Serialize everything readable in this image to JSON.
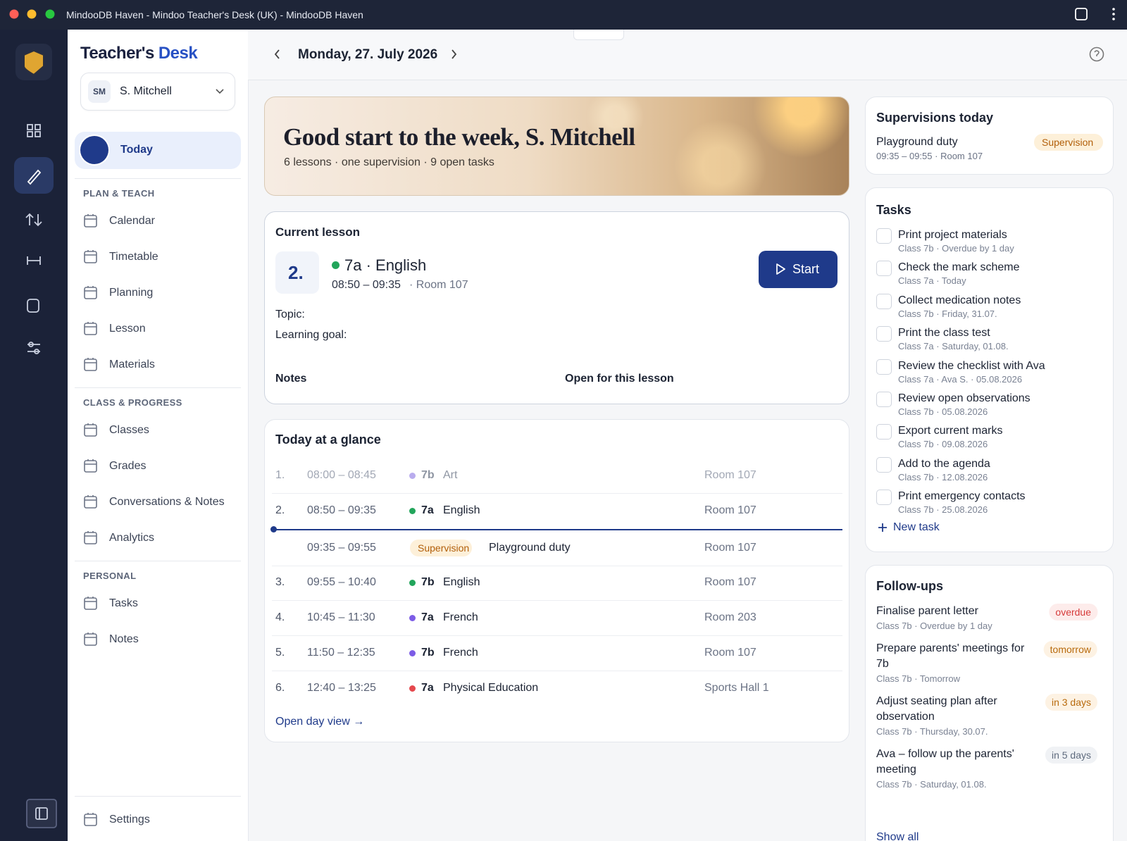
{
  "window": {
    "title": "MindooDB Haven - Mindoo Teacher's Desk (UK) - MindooDB Haven"
  },
  "sidebar": {
    "brand_part1": "Teacher's",
    "brand_part2": "Desk",
    "user": {
      "initials": "SM",
      "name": "S. Mitchell"
    },
    "active": "Today",
    "sections": [
      {
        "heading": "PLAN & TEACH",
        "items": [
          "Calendar",
          "Timetable",
          "Planning",
          "Lesson",
          "Materials"
        ]
      },
      {
        "heading": "CLASS & PROGRESS",
        "items": [
          "Classes",
          "Grades",
          "Conversations & Notes",
          "Analytics"
        ]
      },
      {
        "heading": "PERSONAL",
        "items": [
          "Tasks",
          "Notes"
        ]
      }
    ],
    "settings": "Settings"
  },
  "header": {
    "date": "Monday, 27. July 2026"
  },
  "hero": {
    "title": "Good start to the week, S. Mitchell",
    "subtitle": "6 lessons · one supervision · 9 open tasks"
  },
  "current_lesson": {
    "heading": "Current lesson",
    "number": "2.",
    "title": "7a · English",
    "time": "08:50 – 09:35",
    "room": "· Room 107",
    "start": "Start",
    "topic": "Topic:",
    "goal": "Learning goal:",
    "notes": "Notes",
    "notes_link": "Open for this lesson"
  },
  "glance": {
    "heading": "Today at a glance",
    "rows": [
      {
        "num": "1.",
        "time": "08:00 – 08:45",
        "class": "7b",
        "subject": "Art",
        "room": "Room 107",
        "dot": "#b9acee",
        "muted": true
      },
      {
        "num": "2.",
        "time": "08:50 – 09:35",
        "class": "7a",
        "subject": "English",
        "room": "Room 107",
        "dot": "#22a55b",
        "current": true
      },
      {
        "time": "09:35 – 09:55",
        "badge": "Supervision",
        "subject": "Playground duty",
        "room": "Room 107"
      },
      {
        "num": "3.",
        "time": "09:55 – 10:40",
        "class": "7b",
        "subject": "English",
        "room": "Room 107",
        "dot": "#22a55b"
      },
      {
        "num": "4.",
        "time": "10:45 – 11:30",
        "class": "7a",
        "subject": "French",
        "room": "Room 203",
        "dot": "#7c5ce6"
      },
      {
        "num": "5.",
        "time": "11:50 – 12:35",
        "class": "7b",
        "subject": "French",
        "room": "Room 107",
        "dot": "#7c5ce6"
      },
      {
        "num": "6.",
        "time": "12:40 – 13:25",
        "class": "7a",
        "subject": "Physical Education",
        "room": "Sports Hall 1",
        "dot": "#e5484d"
      }
    ],
    "link": "Open day view →"
  },
  "supervisions": {
    "heading": "Supervisions today",
    "title": "Playground duty",
    "meta": "09:35 – 09:55 · Room 107",
    "badge": "Supervision"
  },
  "tasks": {
    "heading": "Tasks",
    "items": [
      {
        "title": "Print project materials",
        "meta": "Class 7b · Overdue by 1 day"
      },
      {
        "title": "Check the mark scheme",
        "meta": "Class 7a · Today"
      },
      {
        "title": "Collect medication notes",
        "meta": "Class 7b · Friday, 31.07."
      },
      {
        "title": "Print the class test",
        "meta": "Class 7a · Saturday, 01.08."
      },
      {
        "title": "Review the checklist with Ava",
        "meta": "Class 7a · Ava S. · 05.08.2026"
      },
      {
        "title": "Review open observations",
        "meta": "Class 7b · 05.08.2026"
      },
      {
        "title": "Export current marks",
        "meta": "Class 7b · 09.08.2026"
      },
      {
        "title": "Add to the agenda",
        "meta": "Class 7b · 12.08.2026"
      },
      {
        "title": "Print emergency contacts",
        "meta": "Class 7b · 25.08.2026"
      }
    ],
    "new": "New task"
  },
  "followups": {
    "heading": "Follow-ups",
    "items": [
      {
        "title": "Finalise parent letter",
        "meta": "Class 7b · Overdue by 1 day",
        "badge": "overdue",
        "badge_color": "#d63a3a",
        "badge_bg": "#fdeceb"
      },
      {
        "title": "Prepare parents' meetings for 7b",
        "meta": "Class 7b · Tomorrow",
        "badge": "tomorrow",
        "badge_color": "#b86a0c",
        "badge_bg": "#fdf2e3"
      },
      {
        "title": "Adjust seating plan after observation",
        "meta": "Class 7b · Thursday, 30.07.",
        "badge": "in 3 days",
        "badge_color": "#b86a0c",
        "badge_bg": "#fdf2e3"
      },
      {
        "title": "Ava – follow up the parents' meeting",
        "meta": "Class 7b · Saturday, 01.08.",
        "badge": "in 5 days",
        "badge_color": "#5f6b7e",
        "badge_bg": "#f0f2f5"
      }
    ],
    "show_all": "Show all"
  }
}
